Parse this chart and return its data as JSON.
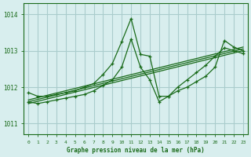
{
  "title": "Graphe pression niveau de la mer (hPa)",
  "bg_color": "#d8eeee",
  "grid_color": "#aacccc",
  "line_color": "#1a6b1a",
  "ylim": [
    1010.7,
    1014.3
  ],
  "xlim": [
    -0.5,
    23.5
  ],
  "yticks": [
    1011,
    1012,
    1013,
    1014
  ],
  "xticks": [
    0,
    1,
    2,
    3,
    4,
    5,
    6,
    7,
    8,
    9,
    10,
    11,
    12,
    13,
    14,
    15,
    16,
    17,
    18,
    19,
    20,
    21,
    22,
    23
  ],
  "series": [
    {
      "x": [
        0,
        1,
        2,
        3,
        4,
        5,
        6,
        7,
        8,
        9,
        10,
        11,
        12,
        13,
        14,
        15,
        16,
        17,
        18,
        19,
        20,
        21,
        22,
        23
      ],
      "y": [
        1011.85,
        1011.75,
        1011.75,
        1011.8,
        1011.85,
        1011.9,
        1012.0,
        1012.1,
        1012.35,
        1012.65,
        1013.25,
        1013.88,
        1012.9,
        1012.85,
        1011.75,
        1011.75,
        1011.9,
        1012.0,
        1012.15,
        1012.3,
        1012.55,
        1013.28,
        1013.1,
        1013.0
      ]
    },
    {
      "x": [
        0,
        1,
        2,
        3,
        4,
        5,
        6,
        7,
        8,
        9,
        10,
        11,
        12,
        13,
        14,
        15,
        16,
        17,
        18,
        19,
        20,
        21,
        22,
        23
      ],
      "y": [
        1011.6,
        1011.55,
        1011.6,
        1011.65,
        1011.7,
        1011.75,
        1011.8,
        1011.9,
        1012.05,
        1012.2,
        1012.55,
        1013.32,
        1012.55,
        1012.2,
        1011.6,
        1011.75,
        1012.0,
        1012.2,
        1012.4,
        1012.6,
        1012.85,
        1013.08,
        1013.0,
        1012.92
      ]
    },
    {
      "x": [
        0,
        23
      ],
      "y": [
        1011.55,
        1013.0
      ]
    },
    {
      "x": [
        0,
        23
      ],
      "y": [
        1011.6,
        1013.05
      ]
    },
    {
      "x": [
        0,
        23
      ],
      "y": [
        1011.65,
        1013.1
      ]
    }
  ]
}
